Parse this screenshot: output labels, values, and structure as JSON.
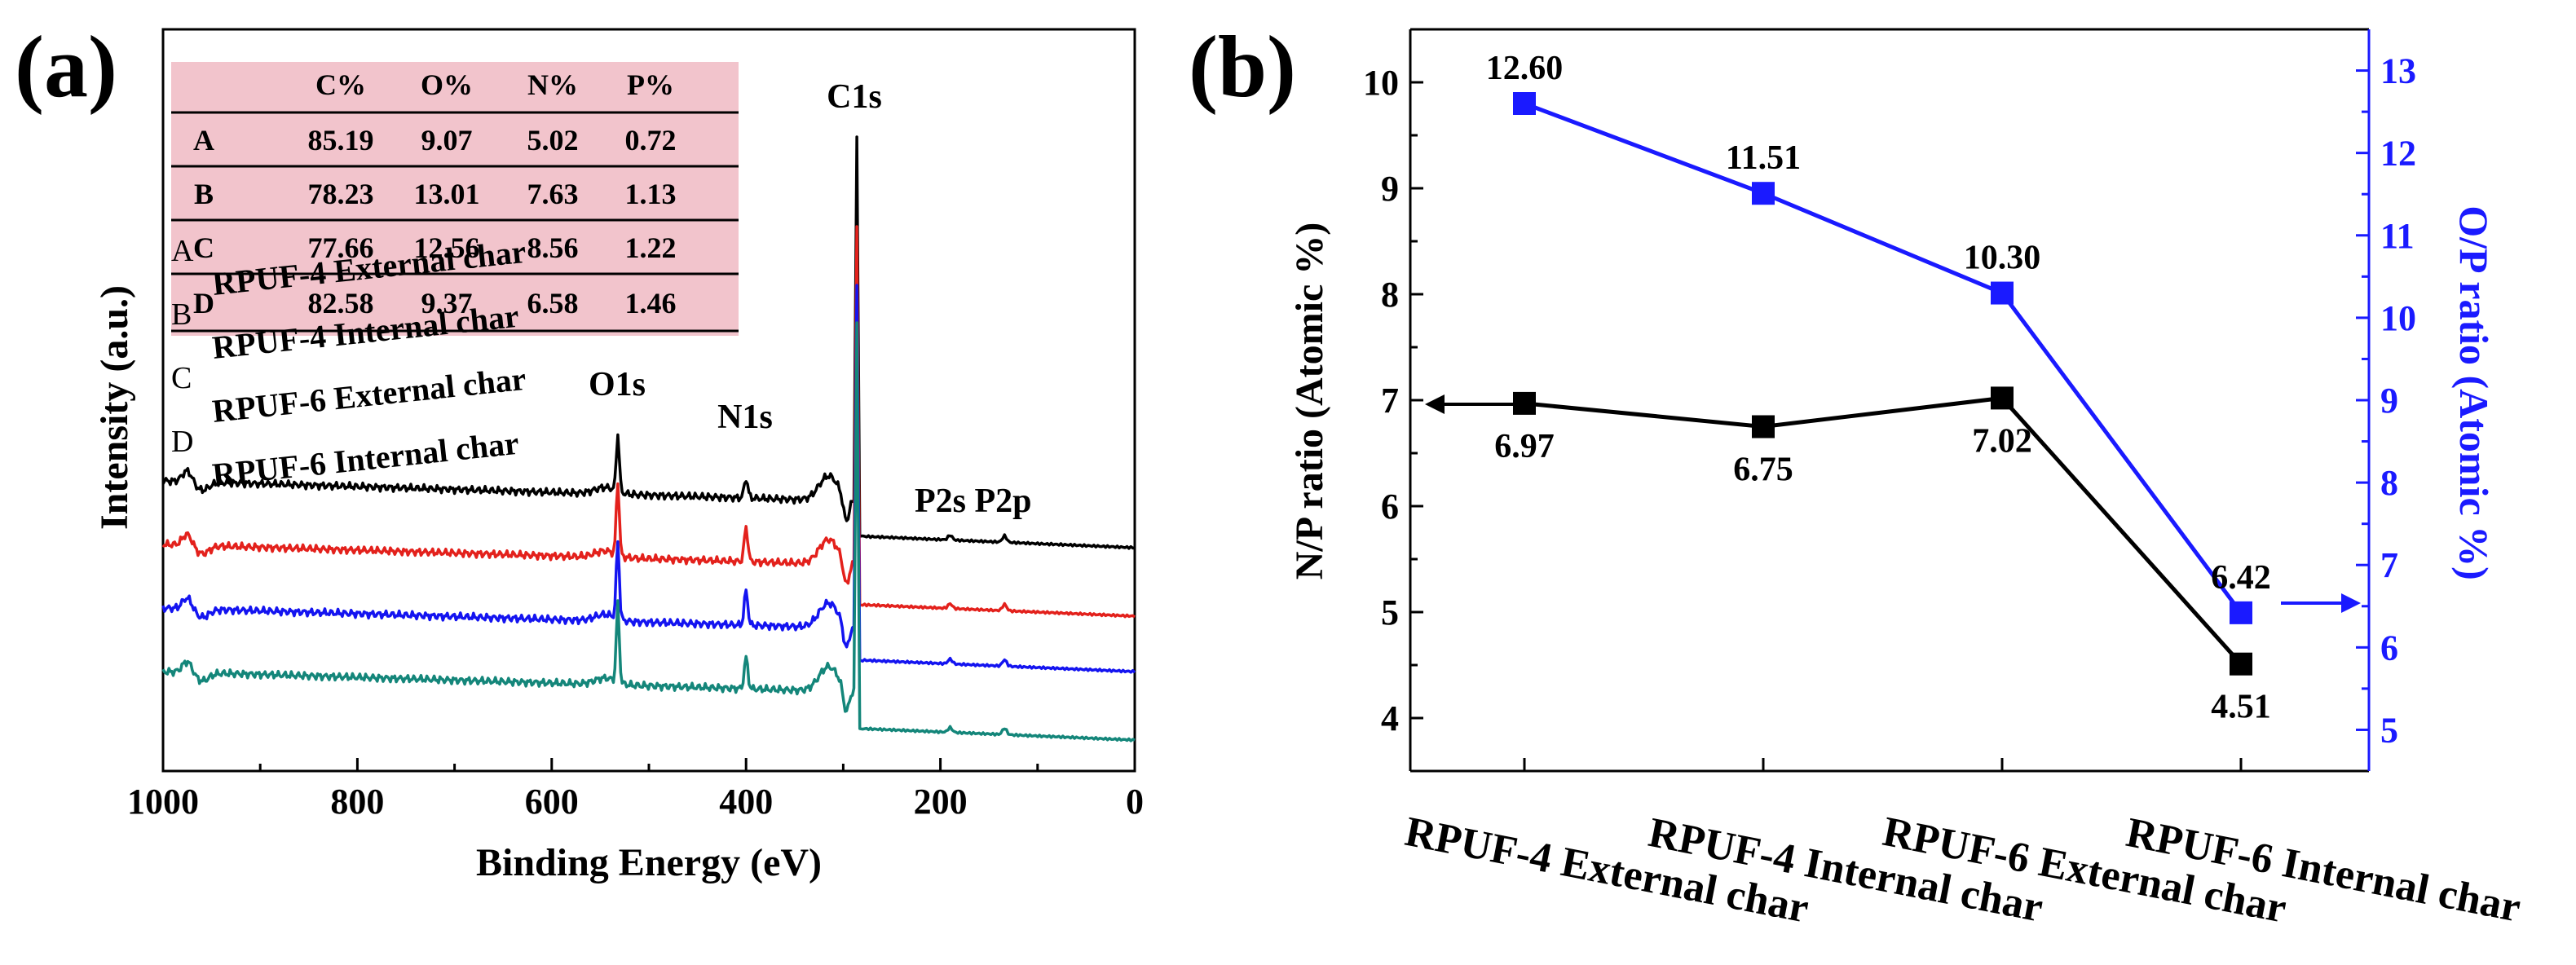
{
  "panel_a_label": "(a)",
  "panel_b_label": "(b)",
  "chart_data": [
    {
      "type": "line",
      "panel": "(a)",
      "xlabel": "Binding Energy (eV)",
      "ylabel": "Intensity (a.u.)",
      "xlim": [
        1000,
        0
      ],
      "x_ticks": [
        "1000",
        "800",
        "600",
        "400",
        "200",
        "0"
      ],
      "peak_labels": [
        "O1s",
        "N1s",
        "C1s",
        "P2s P2p"
      ],
      "series": [
        {
          "letter": "A",
          "name": "RPUF-4 External char",
          "color": "#000000"
        },
        {
          "letter": "B",
          "name": "RPUF-4 Internal char",
          "color": "#e3211c"
        },
        {
          "letter": "C",
          "name": "RPUF-6 External char",
          "color": "#1414f0"
        },
        {
          "letter": "D",
          "name": "RPUF-6 Internal char",
          "color": "#14867a"
        }
      ],
      "inset_table": {
        "columns": [
          "",
          "C%",
          "O%",
          "N%",
          "P%"
        ],
        "rows": [
          [
            "A",
            "85.19",
            "9.07",
            "5.02",
            "0.72"
          ],
          [
            "B",
            "78.23",
            "13.01",
            "7.63",
            "1.13"
          ],
          [
            "C",
            "77.66",
            "12.56",
            "8.56",
            "1.22"
          ],
          [
            "D",
            "82.58",
            "9.37",
            "6.58",
            "1.46"
          ]
        ],
        "background": "#f2c4cc"
      }
    },
    {
      "type": "line",
      "panel": "(b)",
      "categories": [
        "RPUF-4 External char",
        "RPUF-4 Internal char",
        "RPUF-6 External char",
        "RPUF-6 Internal char"
      ],
      "ylabel": "N/P ratio (Atomic %)",
      "y2label": "O/P ratio (Atomic %)",
      "ylim": [
        3.5,
        10.5
      ],
      "y2lim": [
        4.5,
        13.5
      ],
      "y_ticks": [
        4,
        5,
        6,
        7,
        8,
        9,
        10
      ],
      "y2_ticks": [
        5,
        6,
        7,
        8,
        9,
        10,
        11,
        12,
        13
      ],
      "series": [
        {
          "name": "N/P ratio",
          "axis": "left",
          "color": "#000000",
          "values": [
            6.97,
            6.75,
            7.02,
            4.51
          ],
          "labels": [
            "6.97",
            "6.75",
            "7.02",
            "4.51"
          ]
        },
        {
          "name": "O/P ratio",
          "axis": "right",
          "color": "#1a1aff",
          "values": [
            12.6,
            11.51,
            10.3,
            6.42
          ],
          "labels": [
            "12.60",
            "11.51",
            "10.30",
            "6.42"
          ]
        }
      ]
    }
  ]
}
